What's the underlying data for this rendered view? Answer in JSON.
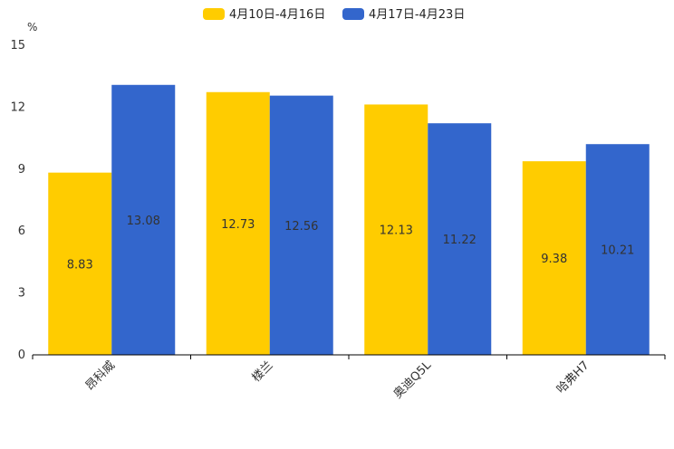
{
  "chart_data": {
    "type": "bar",
    "title": "",
    "ylabel": "%",
    "xlabel": "",
    "ylim": [
      0,
      15
    ],
    "yticks": [
      0,
      3,
      6,
      9,
      12,
      15
    ],
    "grid": false,
    "legend_position": "top-center",
    "categories": [
      "昂科威",
      "楼兰",
      "奥迪Q5L",
      "哈弗H7"
    ],
    "series": [
      {
        "name": "4月10日-4月16日",
        "color": "#FFCC00",
        "values": [
          8.83,
          12.73,
          12.13,
          9.38
        ],
        "labels": [
          "8.83",
          "12.73",
          "12.13",
          "9.38"
        ]
      },
      {
        "name": "4月17日-4月23日",
        "color": "#3366CC",
        "values": [
          13.08,
          12.56,
          11.22,
          10.21
        ],
        "labels": [
          "13.08",
          "12.56",
          "11.22",
          "10.21"
        ]
      }
    ]
  }
}
